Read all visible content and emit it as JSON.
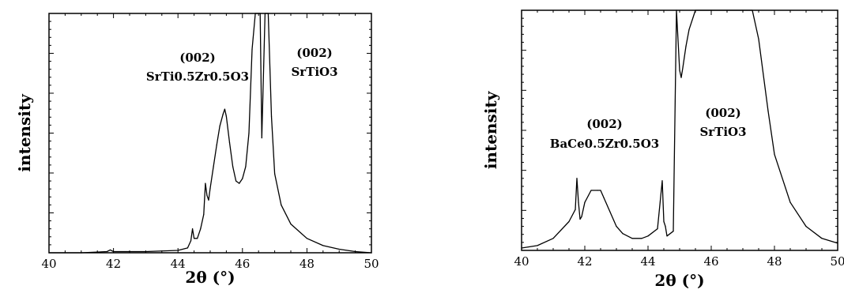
{
  "chart_data": [
    {
      "type": "line",
      "xlabel": "2θ (°)",
      "ylabel": "intensity",
      "xlim": [
        40,
        50
      ],
      "x_ticks": [
        "40",
        "42",
        "44",
        "46",
        "48",
        "50"
      ],
      "annotations": [
        {
          "hkl": "(002)",
          "compound": "SrTi0.5Zr0.5O3"
        },
        {
          "hkl": "(002)",
          "compound": "SrTiO3"
        }
      ],
      "series": [
        {
          "x": [
            40.0,
            41.0,
            41.8,
            41.9,
            42.0,
            43.0,
            44.0,
            44.3,
            44.4,
            44.45,
            44.5,
            44.6,
            44.7,
            44.8,
            44.85,
            44.9,
            44.95,
            45.0,
            45.1,
            45.2,
            45.3,
            45.4,
            45.45,
            45.5,
            45.6,
            45.7,
            45.8,
            45.9,
            46.0,
            46.1,
            46.2,
            46.3,
            46.4,
            46.55,
            46.6,
            46.7,
            46.8,
            46.9,
            47.0,
            47.2,
            47.5,
            48.0,
            48.5,
            49.0,
            49.5,
            50.0
          ],
          "y": [
            0.0,
            0.0,
            0.005,
            0.012,
            0.005,
            0.005,
            0.01,
            0.02,
            0.05,
            0.1,
            0.06,
            0.06,
            0.1,
            0.16,
            0.29,
            0.24,
            0.22,
            0.27,
            0.36,
            0.45,
            0.53,
            0.58,
            0.6,
            0.57,
            0.46,
            0.36,
            0.3,
            0.29,
            0.31,
            0.36,
            0.5,
            0.85,
            1.0,
            1.0,
            0.48,
            1.0,
            1.0,
            0.57,
            0.33,
            0.2,
            0.12,
            0.06,
            0.03,
            0.015,
            0.005,
            0.0
          ]
        }
      ]
    },
    {
      "type": "line",
      "xlabel": "2θ (°)",
      "ylabel": "intensity",
      "xlim": [
        40,
        50
      ],
      "x_ticks": [
        "40",
        "42",
        "44",
        "46",
        "48",
        "50"
      ],
      "annotations": [
        {
          "hkl": "(002)",
          "compound": "BaCe0.5Zr0.5O3"
        },
        {
          "hkl": "(002)",
          "compound": "SrTiO3"
        }
      ],
      "series": [
        {
          "x": [
            40.0,
            40.5,
            41.0,
            41.5,
            41.7,
            41.75,
            41.8,
            41.85,
            41.9,
            42.0,
            42.2,
            42.4,
            42.5,
            42.6,
            42.8,
            43.0,
            43.2,
            43.5,
            43.8,
            44.0,
            44.3,
            44.45,
            44.5,
            44.55,
            44.6,
            44.8,
            44.9,
            45.0,
            45.05,
            45.1,
            45.2,
            45.3,
            45.5,
            46.0,
            46.5,
            47.0,
            47.3,
            47.5,
            47.8,
            48.0,
            48.5,
            49.0,
            49.5,
            50.0
          ],
          "y": [
            0.01,
            0.02,
            0.05,
            0.12,
            0.17,
            0.3,
            0.2,
            0.13,
            0.14,
            0.2,
            0.25,
            0.25,
            0.25,
            0.22,
            0.16,
            0.1,
            0.07,
            0.05,
            0.05,
            0.06,
            0.09,
            0.29,
            0.12,
            0.1,
            0.06,
            0.08,
            1.0,
            0.75,
            0.72,
            0.76,
            0.85,
            0.92,
            1.0,
            1.0,
            1.0,
            1.0,
            1.0,
            0.88,
            0.58,
            0.4,
            0.2,
            0.1,
            0.05,
            0.03
          ]
        }
      ]
    }
  ]
}
